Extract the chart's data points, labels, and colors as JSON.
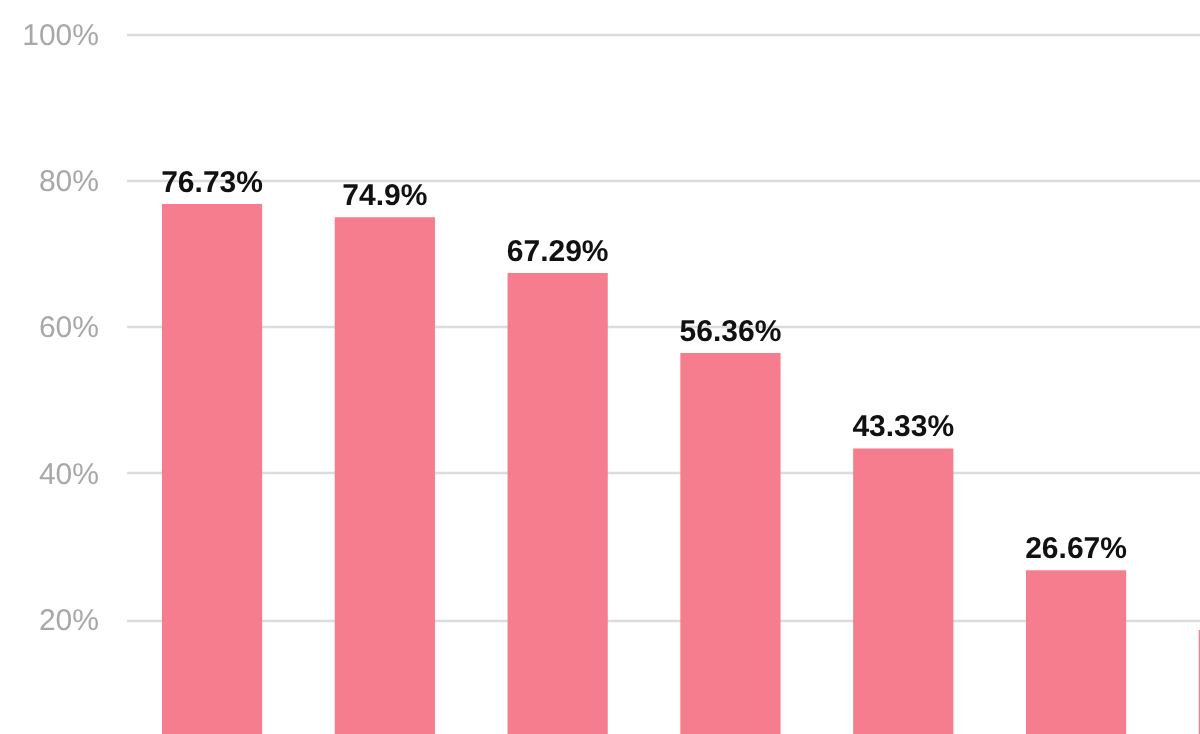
{
  "chart_data": {
    "type": "bar",
    "categories": [
      null,
      null,
      null,
      null,
      null,
      null,
      null
    ],
    "values": [
      76.73,
      74.9,
      67.29,
      56.36,
      43.33,
      26.67,
      18.5
    ],
    "value_labels": [
      "76.73%",
      "74.9%",
      "67.29%",
      "56.36%",
      "43.33%",
      "26.67%",
      null
    ],
    "color": "#f67d8e",
    "ylim": [
      4.3,
      104.6
    ],
    "yticks": [
      {
        "value": 20,
        "label": "20%"
      },
      {
        "value": 40,
        "label": "40%"
      },
      {
        "value": 60,
        "label": "60%"
      },
      {
        "value": 80,
        "label": "80%"
      },
      {
        "value": 100,
        "label": "100%"
      }
    ],
    "grid": "y"
  }
}
